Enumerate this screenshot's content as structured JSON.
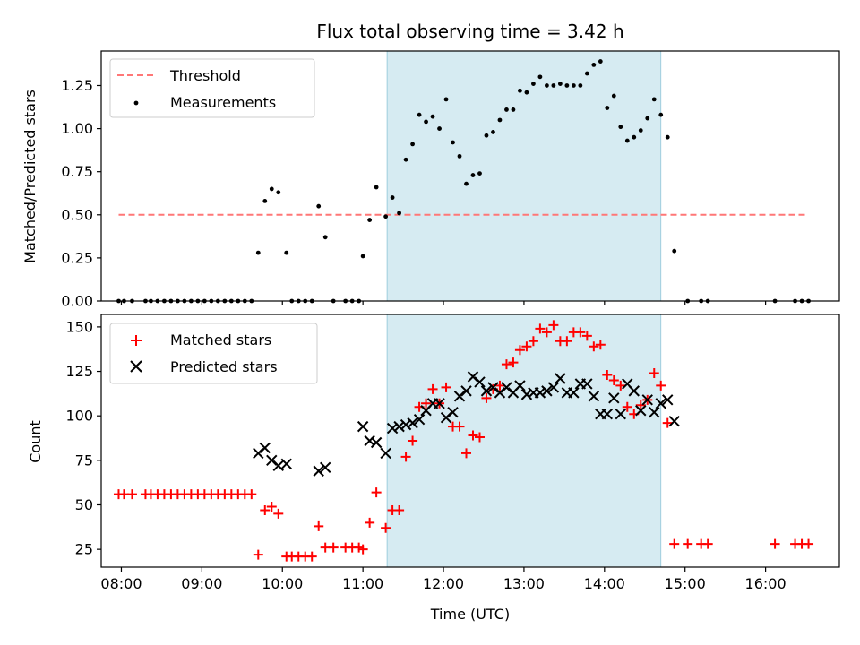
{
  "chart_data": [
    {
      "type": "scatter",
      "title": "Flux total observing time = 3.42 h",
      "xlabel": "",
      "ylabel": "Matched/Predicted stars",
      "xlim": [
        "07:45",
        "16:55"
      ],
      "ylim": [
        0,
        1.45
      ],
      "y_ticks": [
        0.0,
        0.25,
        0.5,
        0.75,
        1.0,
        1.25
      ],
      "y_tick_labels": [
        "0.00",
        "0.25",
        "0.50",
        "0.75",
        "1.00",
        "1.25"
      ],
      "shaded_span": [
        "11:18",
        "14:42"
      ],
      "legend_position": "upper left",
      "series": [
        {
          "name": "Threshold",
          "kind": "dashed-line",
          "color": "#ff7777",
          "x": [
            "07:58",
            "16:30"
          ],
          "y": [
            0.5,
            0.5
          ]
        },
        {
          "name": "Measurements",
          "kind": "points",
          "color": "#000000",
          "x": [
            "07:58",
            "08:02",
            "08:08",
            "08:18",
            "08:22",
            "08:27",
            "08:32",
            "08:37",
            "08:42",
            "08:47",
            "08:52",
            "08:57",
            "09:02",
            "09:07",
            "09:12",
            "09:17",
            "09:22",
            "09:27",
            "09:32",
            "09:37",
            "09:42",
            "09:47",
            "09:52",
            "09:57",
            "10:03",
            "10:07",
            "10:12",
            "10:17",
            "10:22",
            "10:27",
            "10:32",
            "10:38",
            "10:47",
            "10:52",
            "10:57",
            "11:00",
            "11:05",
            "11:10",
            "11:17",
            "11:22",
            "11:27",
            "11:32",
            "11:37",
            "11:42",
            "11:47",
            "11:52",
            "11:57",
            "12:02",
            "12:07",
            "12:12",
            "12:17",
            "12:22",
            "12:27",
            "12:32",
            "12:37",
            "12:42",
            "12:47",
            "12:52",
            "12:57",
            "13:02",
            "13:07",
            "13:12",
            "13:17",
            "13:22",
            "13:27",
            "13:32",
            "13:37",
            "13:42",
            "13:47",
            "13:52",
            "13:57",
            "14:02",
            "14:07",
            "14:12",
            "14:17",
            "14:22",
            "14:27",
            "14:32",
            "14:37",
            "14:42",
            "14:47",
            "14:52",
            "15:02",
            "15:12",
            "15:17",
            "16:07",
            "16:22",
            "16:27",
            "16:32"
          ],
          "y": [
            0.0,
            0.0,
            0.0,
            0.0,
            0.0,
            0.0,
            0.0,
            0.0,
            0.0,
            0.0,
            0.0,
            0.0,
            0.0,
            0.0,
            0.0,
            0.0,
            0.0,
            0.0,
            0.0,
            0.0,
            0.28,
            0.58,
            0.65,
            0.63,
            0.28,
            0.0,
            0.0,
            0.0,
            0.0,
            0.55,
            0.37,
            0.0,
            0.0,
            0.0,
            0.0,
            0.26,
            0.47,
            0.66,
            0.49,
            0.6,
            0.51,
            0.82,
            0.91,
            1.08,
            1.04,
            1.07,
            1.0,
            1.17,
            0.92,
            0.84,
            0.68,
            0.73,
            0.74,
            0.96,
            0.98,
            1.05,
            1.11,
            1.11,
            1.22,
            1.21,
            1.26,
            1.3,
            1.25,
            1.25,
            1.26,
            1.25,
            1.25,
            1.25,
            1.32,
            1.37,
            1.39,
            1.12,
            1.19,
            1.01,
            0.93,
            0.95,
            0.99,
            1.06,
            1.17,
            1.08,
            0.95,
            0.29,
            0.0,
            0.0,
            0.0,
            0.0,
            0.0,
            0.0,
            0.0
          ]
        }
      ]
    },
    {
      "type": "scatter",
      "title": "",
      "xlabel": "Time (UTC)",
      "ylabel": "Count",
      "xlim": [
        "07:45",
        "16:55"
      ],
      "ylim": [
        15,
        157
      ],
      "x_ticks": [
        "08:00",
        "09:00",
        "10:00",
        "11:00",
        "12:00",
        "13:00",
        "14:00",
        "15:00",
        "16:00"
      ],
      "y_ticks": [
        25,
        50,
        75,
        100,
        125,
        150
      ],
      "y_tick_labels": [
        "25",
        "50",
        "75",
        "100",
        "125",
        "150"
      ],
      "shaded_span": [
        "11:18",
        "14:42"
      ],
      "legend_position": "upper left",
      "series": [
        {
          "name": "Matched stars",
          "kind": "plus",
          "color": "#ff0000",
          "x": [
            "07:58",
            "08:02",
            "08:08",
            "08:18",
            "08:22",
            "08:27",
            "08:32",
            "08:37",
            "08:42",
            "08:47",
            "08:52",
            "08:57",
            "09:02",
            "09:07",
            "09:12",
            "09:17",
            "09:22",
            "09:27",
            "09:32",
            "09:37",
            "09:42",
            "09:47",
            "09:52",
            "09:57",
            "10:03",
            "10:07",
            "10:12",
            "10:17",
            "10:22",
            "10:27",
            "10:32",
            "10:38",
            "10:47",
            "10:52",
            "10:57",
            "11:00",
            "11:05",
            "11:10",
            "11:17",
            "11:22",
            "11:27",
            "11:32",
            "11:37",
            "11:42",
            "11:47",
            "11:52",
            "11:57",
            "12:02",
            "12:07",
            "12:12",
            "12:17",
            "12:22",
            "12:27",
            "12:32",
            "12:37",
            "12:42",
            "12:47",
            "12:52",
            "12:57",
            "13:02",
            "13:07",
            "13:12",
            "13:17",
            "13:22",
            "13:27",
            "13:32",
            "13:37",
            "13:42",
            "13:47",
            "13:52",
            "13:57",
            "14:02",
            "14:07",
            "14:12",
            "14:17",
            "14:22",
            "14:27",
            "14:32",
            "14:37",
            "14:42",
            "14:47",
            "14:52",
            "15:02",
            "15:12",
            "15:17",
            "16:07",
            "16:22",
            "16:27",
            "16:32"
          ],
          "y": [
            56,
            56,
            56,
            56,
            56,
            56,
            56,
            56,
            56,
            56,
            56,
            56,
            56,
            56,
            56,
            56,
            56,
            56,
            56,
            56,
            22,
            47,
            49,
            45,
            21,
            21,
            21,
            21,
            21,
            38,
            26,
            26,
            26,
            26,
            26,
            25,
            40,
            57,
            37,
            47,
            47,
            77,
            86,
            105,
            107,
            115,
            107,
            116,
            94,
            94,
            79,
            89,
            88,
            110,
            115,
            117,
            129,
            130,
            137,
            139,
            142,
            149,
            147,
            151,
            142,
            142,
            147,
            147,
            145,
            139,
            140,
            123,
            120,
            117,
            105,
            101,
            106,
            109,
            124,
            117,
            96,
            28,
            28,
            28,
            28,
            28,
            28,
            28,
            28
          ]
        },
        {
          "name": "Predicted stars",
          "kind": "cross",
          "color": "#000000",
          "x": [
            "09:42",
            "09:47",
            "09:52",
            "09:57",
            "10:03",
            "10:27",
            "10:32",
            "11:00",
            "11:05",
            "11:10",
            "11:17",
            "11:22",
            "11:27",
            "11:32",
            "11:37",
            "11:42",
            "11:47",
            "11:52",
            "11:57",
            "12:02",
            "12:07",
            "12:12",
            "12:17",
            "12:22",
            "12:27",
            "12:32",
            "12:37",
            "12:42",
            "12:47",
            "12:52",
            "12:57",
            "13:02",
            "13:07",
            "13:12",
            "13:17",
            "13:22",
            "13:27",
            "13:32",
            "13:37",
            "13:42",
            "13:47",
            "13:52",
            "13:57",
            "14:02",
            "14:07",
            "14:12",
            "14:17",
            "14:22",
            "14:27",
            "14:32",
            "14:37",
            "14:42",
            "14:47",
            "14:52"
          ],
          "y": [
            79,
            82,
            75,
            72,
            73,
            69,
            71,
            94,
            86,
            85,
            79,
            93,
            94,
            95,
            96,
            98,
            103,
            107,
            107,
            99,
            102,
            111,
            114,
            122,
            119,
            114,
            116,
            113,
            116,
            113,
            117,
            112,
            113,
            113,
            114,
            116,
            121,
            113,
            113,
            118,
            118,
            111,
            101,
            101,
            110,
            101,
            118,
            114,
            103,
            109,
            102,
            107,
            109,
            97
          ]
        }
      ]
    }
  ]
}
